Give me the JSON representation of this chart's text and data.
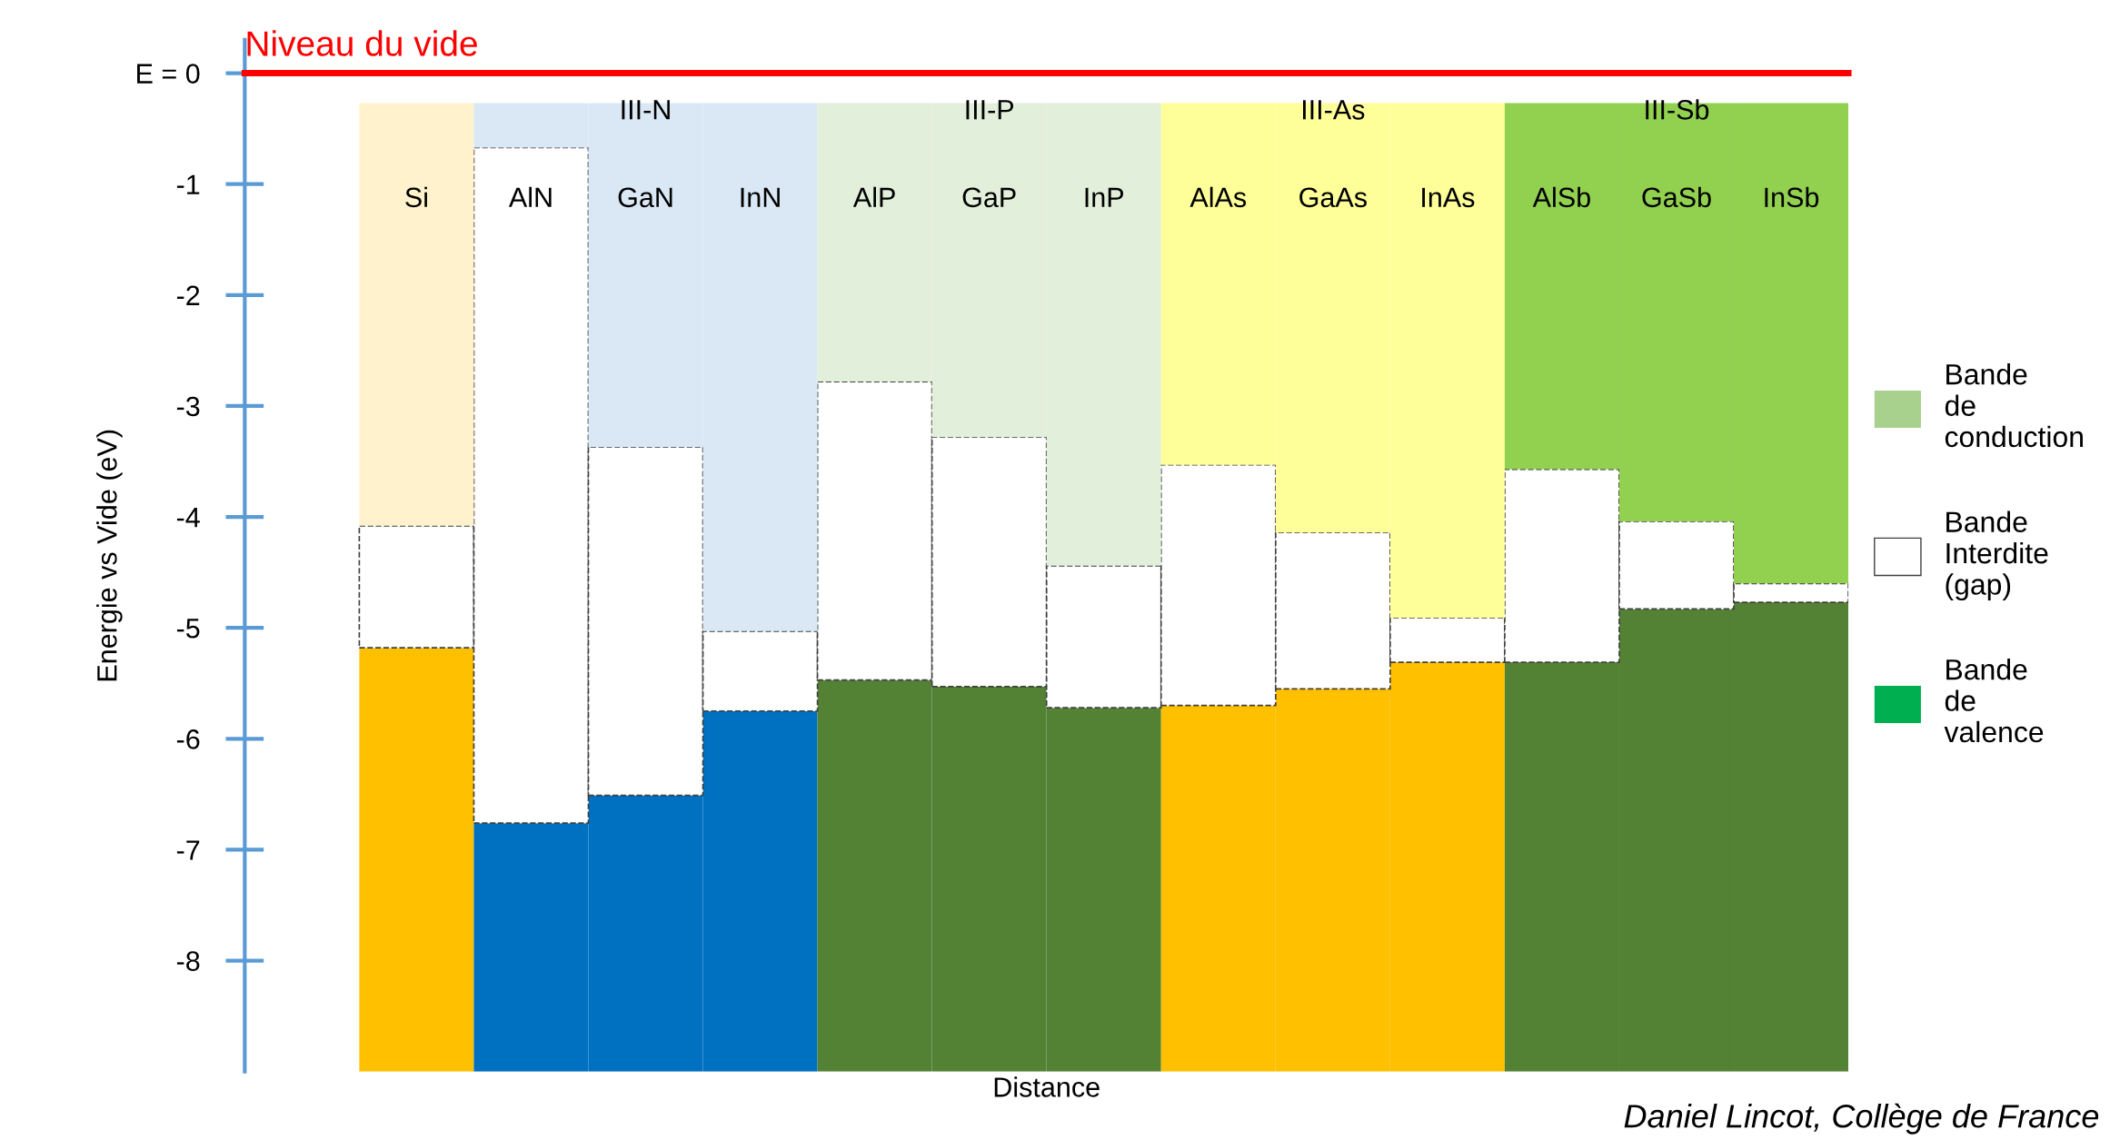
{
  "chart_data": {
    "type": "bar",
    "ylabel": "Energie vs Vide (eV)",
    "xlabel": "Distance",
    "categories": [
      "Si",
      "AlN",
      "GaN",
      "InN",
      "AlP",
      "GaP",
      "InP",
      "AlAs",
      "GaAs",
      "InAs",
      "AlSb",
      "GaSb",
      "InSb"
    ],
    "series": [
      {
        "name": "Bande de valence",
        "color": "#00b050",
        "base": [
          -9.0,
          -9.0,
          -9.0,
          -9.0,
          -9.0,
          -9.0,
          -9.0,
          -9.0,
          -9.0,
          -9.0,
          -9.0,
          -9.0,
          -9.0
        ],
        "values": [
          3.82,
          2.24,
          2.49,
          3.25,
          3.53,
          3.47,
          3.28,
          3.3,
          3.45,
          3.69,
          3.69,
          4.17,
          4.23
        ],
        "colors": [
          "#ffc000",
          "#0070c0",
          "#0070c0",
          "#0070c0",
          "#548235",
          "#548235",
          "#548235",
          "#ffc000",
          "#ffc000",
          "#ffc000",
          "#548235",
          "#548235",
          "#548235"
        ]
      },
      {
        "name": "Bande Interdite (gap)",
        "color": "#ffffff",
        "base": [
          -5.18,
          -6.76,
          -6.51,
          -5.75,
          -5.47,
          -5.53,
          -5.72,
          -5.7,
          -5.55,
          -5.31,
          -5.31,
          -4.83,
          -4.77
        ],
        "values": [
          1.1,
          6.09,
          3.14,
          0.72,
          2.69,
          2.25,
          1.28,
          2.17,
          1.41,
          0.4,
          1.74,
          0.79,
          0.17
        ]
      },
      {
        "name": "Bande de conduction",
        "color": "#a9d18e",
        "base": [
          -4.08,
          -0.67,
          -3.37,
          -5.03,
          -2.78,
          -3.28,
          -4.44,
          -3.53,
          -4.14,
          -4.91,
          -3.57,
          -4.04,
          -4.6
        ],
        "values": [
          3.81,
          0.4,
          3.1,
          4.76,
          2.51,
          3.01,
          4.17,
          3.26,
          3.87,
          4.64,
          3.3,
          3.77,
          4.33
        ],
        "colors": [
          "#fff2cc",
          "#dae8f5",
          "#dae8f5",
          "#dae8f5",
          "#e2efda",
          "#e2efda",
          "#e2efda",
          "#ffff99",
          "#ffff99",
          "#ffff99",
          "#92d050",
          "#92d050",
          "#92d050"
        ]
      }
    ],
    "ylim": [
      -9.0,
      0.3
    ],
    "yticks": [
      {
        "value": 0,
        "label": "E = 0"
      },
      -1,
      -2,
      -3,
      -4,
      -5,
      -6,
      -7,
      -8
    ],
    "ref_lines": [
      {
        "axis": "y",
        "value": 0,
        "label": "Niveau du vide",
        "color": "#ff0000"
      }
    ],
    "annotations": [
      "III-N",
      "III-P",
      "III-As",
      "III-Sb",
      "Daniel Lincot, Collège de France"
    ],
    "legend": "right",
    "grid": false
  }
}
